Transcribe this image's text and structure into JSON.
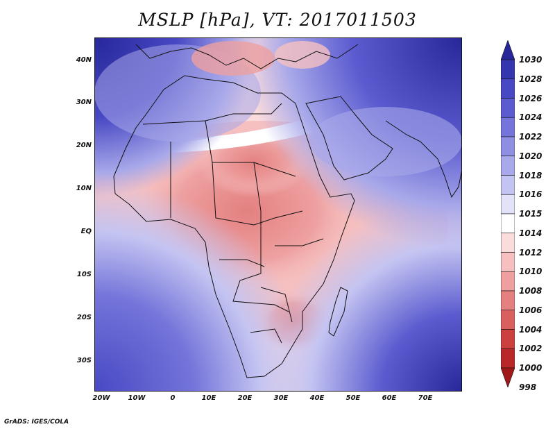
{
  "title": "MSLP [hPa], VT: 2017011503",
  "credit": "GrADS: IGES/COLA",
  "lat_labels": [
    "40N",
    "30N",
    "20N",
    "10N",
    "EQ",
    "10S",
    "20S",
    "30S"
  ],
  "lon_labels": [
    "20W",
    "10W",
    "0",
    "10E",
    "20E",
    "30E",
    "40E",
    "50E",
    "60E",
    "70E"
  ],
  "colorbar": {
    "levels": [
      "1030",
      "1028",
      "1026",
      "1024",
      "1022",
      "1020",
      "1018",
      "1016",
      "1015",
      "1014",
      "1012",
      "1010",
      "1008",
      "1006",
      "1004",
      "1002",
      "1000",
      "998"
    ],
    "colors": [
      "#27279a",
      "#3535b0",
      "#4848c4",
      "#5c5cd0",
      "#7474da",
      "#8e8ee2",
      "#a8a8ea",
      "#c4c4f2",
      "#e2e2f8",
      "#ffffff",
      "#fbdcdc",
      "#f6c0c0",
      "#eea0a0",
      "#e48080",
      "#da6060",
      "#cc4040",
      "#b82828",
      "#a01818"
    ]
  },
  "colors": {
    "high": "#3535b0",
    "low": "#e48080",
    "land_outline": "#111111"
  }
}
